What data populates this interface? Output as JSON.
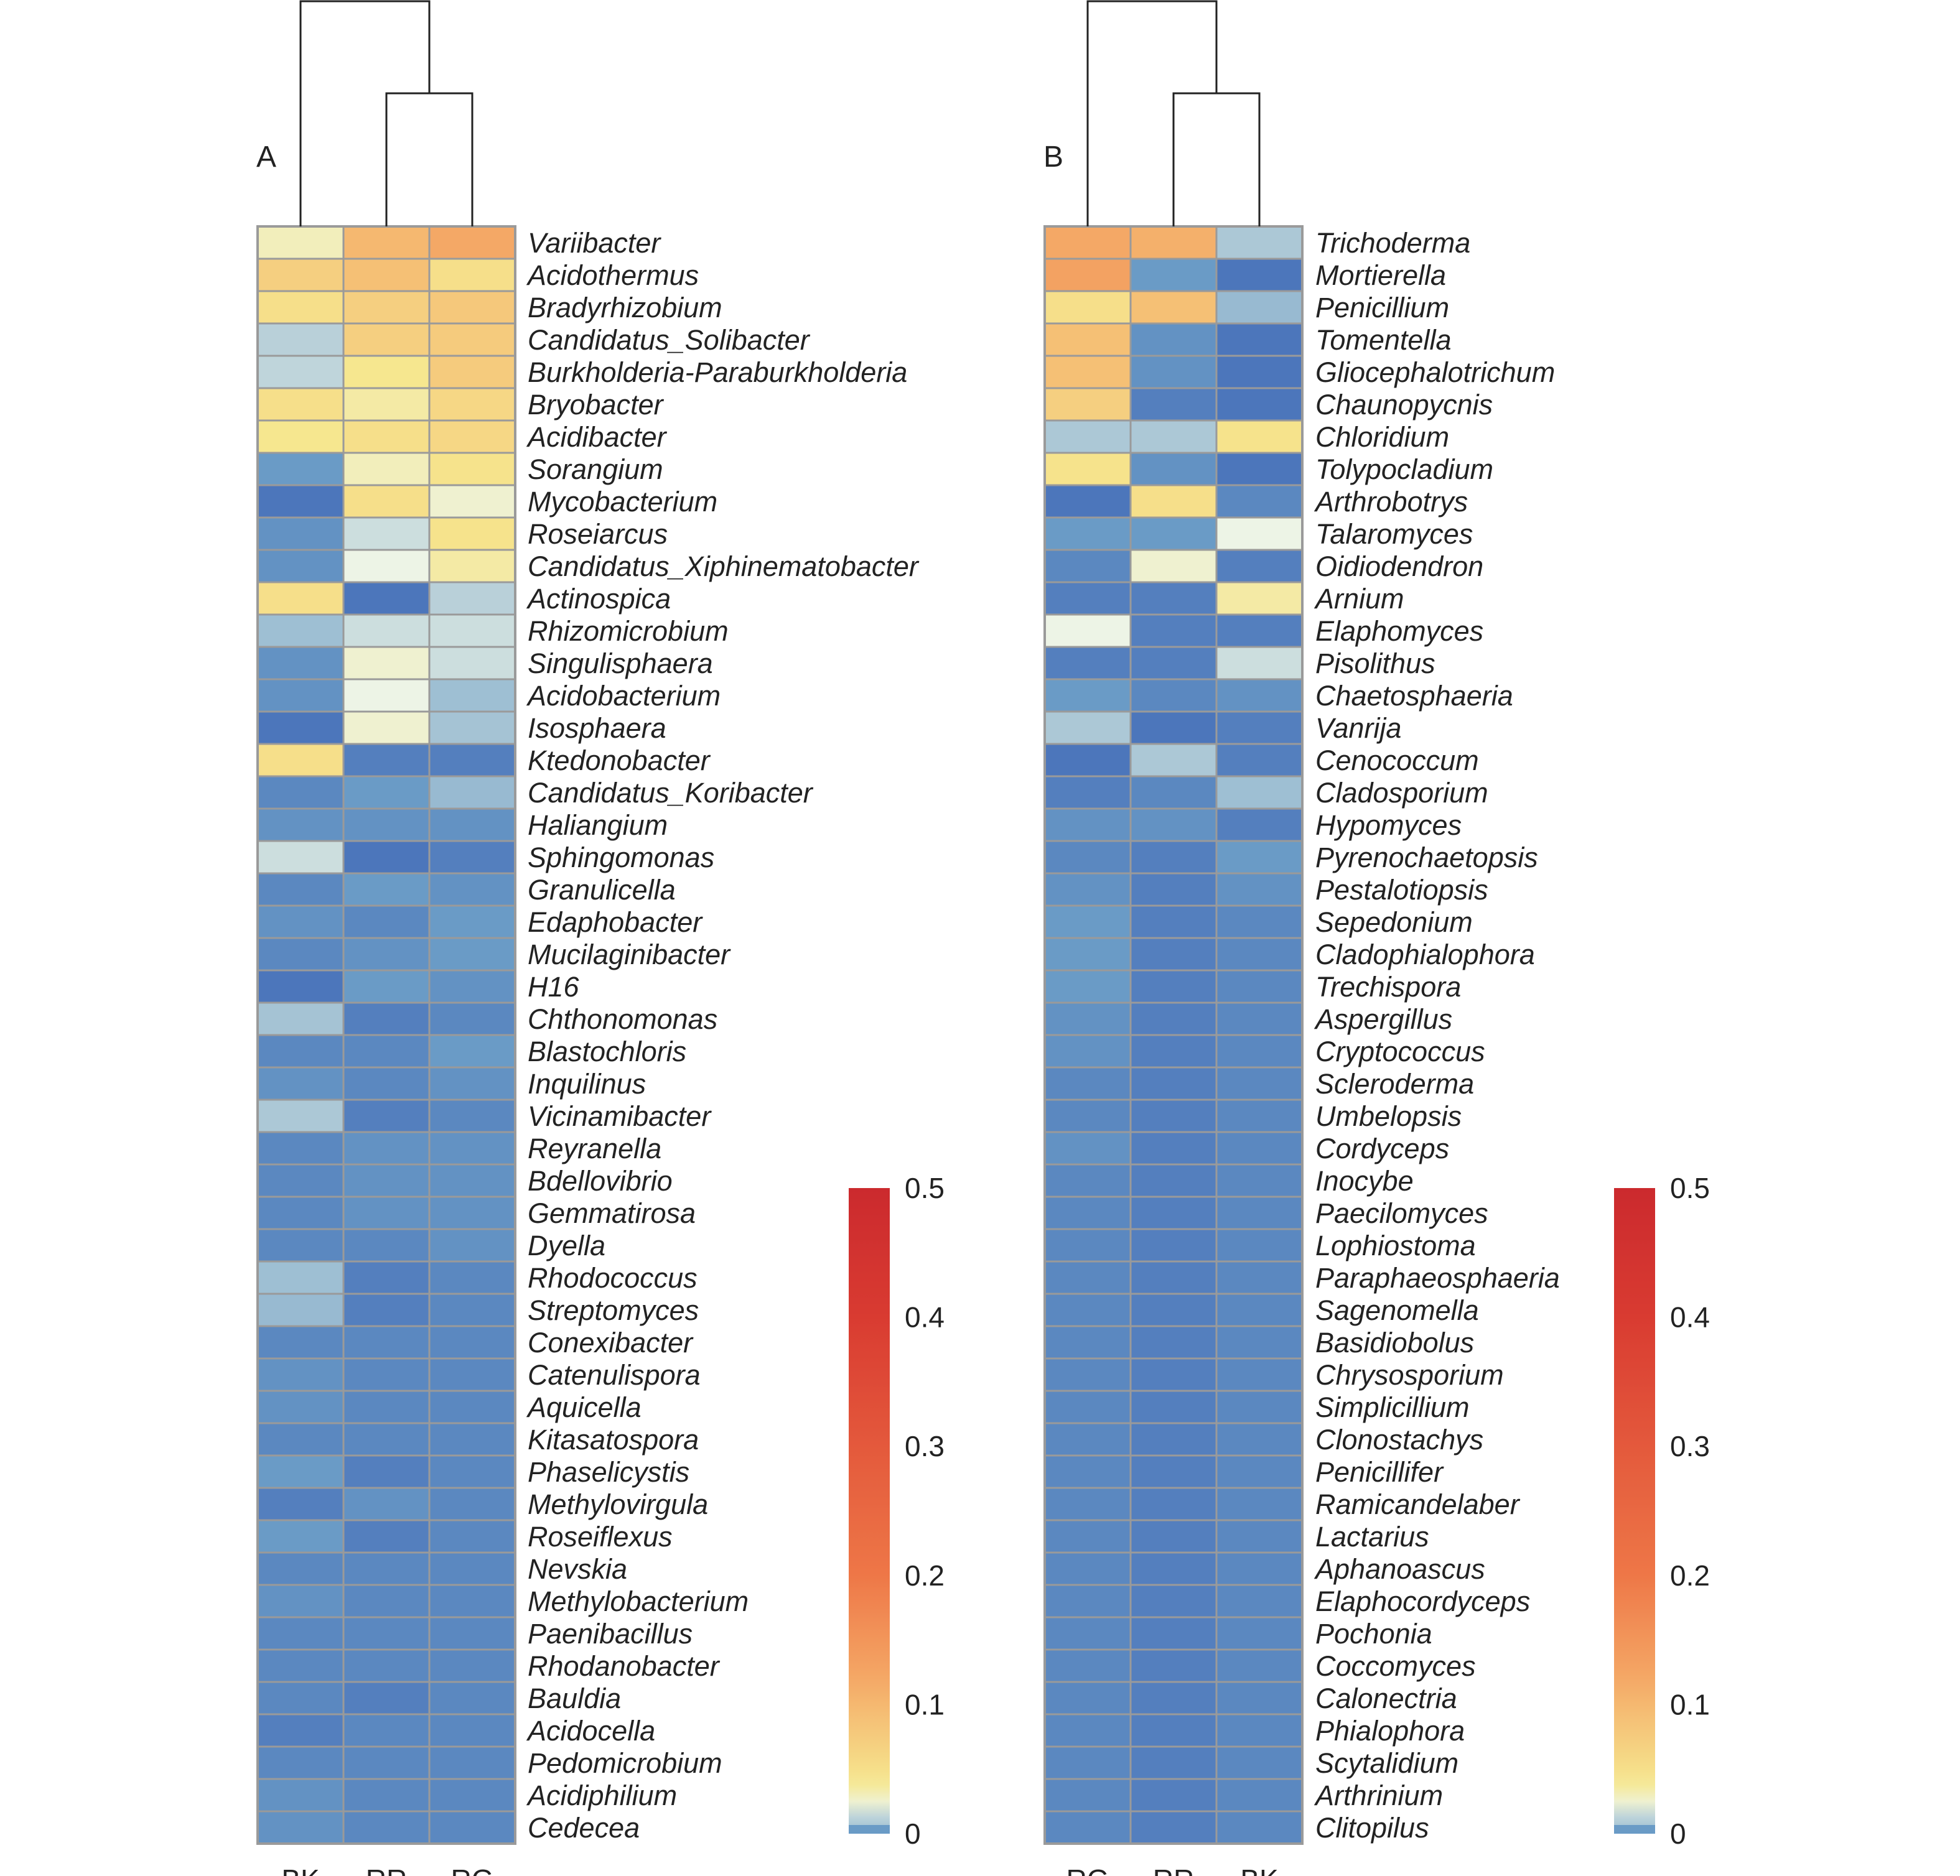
{
  "chart_data": [
    {
      "type": "heatmap",
      "panel_label": "A",
      "columns": [
        "BK",
        "RR",
        "RG"
      ],
      "rows": [
        "Variibacter",
        "Acidothermus",
        "Bradyrhizobium",
        "Candidatus_Solibacter",
        "Burkholderia-Paraburkholderia",
        "Bryobacter",
        "Acidibacter",
        "Sorangium",
        "Mycobacterium",
        "Roseiarcus",
        "Candidatus_Xiphinematobacter",
        "Actinospica",
        "Rhizomicrobium",
        "Singulisphaera",
        "Acidobacterium",
        "Isosphaera",
        "Ktedonobacter",
        "Candidatus_Koribacter",
        "Haliangium",
        "Sphingomonas",
        "Granulicella",
        "Edaphobacter",
        "Mucilaginibacter",
        "H16",
        "Chthonomonas",
        "Blastochloris",
        "Inquilinus",
        "Vicinamibacter",
        "Reyranella",
        "Bdellovibrio",
        "Gemmatirosa",
        "Dyella",
        "Rhodococcus",
        "Streptomyces",
        "Conexibacter",
        "Catenulispora",
        "Aquicella",
        "Kitasatospora",
        "Phaselicystis",
        "Methylovirgula",
        "Roseiflexus",
        "Nevskia",
        "Methylobacterium",
        "Paenibacillus",
        "Rhodanobacter",
        "Bauldia",
        "Acidocella",
        "Pedomicrobium",
        "Acidiphilium",
        "Cedecea"
      ],
      "values": [
        [
          0.03,
          0.1,
          0.12
        ],
        [
          0.07,
          0.09,
          0.05
        ],
        [
          0.05,
          0.07,
          0.08
        ],
        [
          0.012,
          0.07,
          0.075
        ],
        [
          0.013,
          0.04,
          0.075
        ],
        [
          0.05,
          0.035,
          0.06
        ],
        [
          0.04,
          0.05,
          0.06
        ],
        [
          0.006,
          0.03,
          0.045
        ],
        [
          0.002,
          0.05,
          0.025
        ],
        [
          0.005,
          0.015,
          0.045
        ],
        [
          0.005,
          0.02,
          0.035
        ],
        [
          0.05,
          0.002,
          0.012
        ],
        [
          0.008,
          0.015,
          0.015
        ],
        [
          0.005,
          0.025,
          0.015
        ],
        [
          0.005,
          0.02,
          0.008
        ],
        [
          0.002,
          0.025,
          0.009
        ],
        [
          0.05,
          0.003,
          0.003
        ],
        [
          0.004,
          0.006,
          0.007
        ],
        [
          0.005,
          0.005,
          0.005
        ],
        [
          0.015,
          0.002,
          0.003
        ],
        [
          0.004,
          0.006,
          0.005
        ],
        [
          0.005,
          0.004,
          0.006
        ],
        [
          0.004,
          0.005,
          0.006
        ],
        [
          0.002,
          0.006,
          0.005
        ],
        [
          0.009,
          0.003,
          0.004
        ],
        [
          0.004,
          0.004,
          0.006
        ],
        [
          0.005,
          0.004,
          0.005
        ],
        [
          0.01,
          0.003,
          0.004
        ],
        [
          0.004,
          0.005,
          0.005
        ],
        [
          0.004,
          0.005,
          0.005
        ],
        [
          0.004,
          0.005,
          0.005
        ],
        [
          0.004,
          0.004,
          0.005
        ],
        [
          0.008,
          0.003,
          0.004
        ],
        [
          0.007,
          0.003,
          0.004
        ],
        [
          0.004,
          0.004,
          0.004
        ],
        [
          0.005,
          0.004,
          0.004
        ],
        [
          0.005,
          0.004,
          0.004
        ],
        [
          0.004,
          0.004,
          0.004
        ],
        [
          0.006,
          0.003,
          0.004
        ],
        [
          0.003,
          0.005,
          0.004
        ],
        [
          0.006,
          0.003,
          0.004
        ],
        [
          0.004,
          0.004,
          0.004
        ],
        [
          0.005,
          0.004,
          0.004
        ],
        [
          0.004,
          0.004,
          0.004
        ],
        [
          0.004,
          0.004,
          0.004
        ],
        [
          0.004,
          0.003,
          0.004
        ],
        [
          0.003,
          0.004,
          0.004
        ],
        [
          0.004,
          0.004,
          0.004
        ],
        [
          0.005,
          0.004,
          0.004
        ],
        [
          0.005,
          0.004,
          0.004
        ]
      ],
      "color_scale": {
        "min": 0,
        "max": 0.5,
        "ticks": [
          "0",
          "0.1",
          "0.2",
          "0.3",
          "0.4",
          "0.5"
        ]
      },
      "column_dendrogram": "BK | (RR, RG)"
    },
    {
      "type": "heatmap",
      "panel_label": "B",
      "columns": [
        "RG",
        "RR",
        "BK"
      ],
      "rows": [
        "Trichoderma",
        "Mortierella",
        "Penicillium",
        "Tomentella",
        "Gliocephalotrichum",
        "Chaunopycnis",
        "Chloridium",
        "Tolypocladium",
        "Arthrobotrys",
        "Talaromyces",
        "Oidiodendron",
        "Arnium",
        "Elaphomyces",
        "Pisolithus",
        "Chaetosphaeria",
        "Vanrija",
        "Cenococcum",
        "Cladosporium",
        "Hypomyces",
        "Pyrenochaetopsis",
        "Pestalotiopsis",
        "Sepedonium",
        "Cladophialophora",
        "Trechispora",
        "Aspergillus",
        "Cryptococcus",
        "Scleroderma",
        "Umbelopsis",
        "Cordyceps",
        "Inocybe",
        "Paecilomyces",
        "Lophiostoma",
        "Paraphaeosphaeria",
        "Sagenomella",
        "Basidiobolus",
        "Chrysosporium",
        "Simplicillium",
        "Clonostachys",
        "Penicillifer",
        "Ramicandelaber",
        "Lactarius",
        "Aphanoascus",
        "Elaphocordyceps",
        "Pochonia",
        "Coccomyces",
        "Calonectria",
        "Phialophora",
        "Scytalidium",
        "Arthrinium",
        "Clitopilus"
      ],
      "values": [
        [
          0.12,
          0.11,
          0.01
        ],
        [
          0.13,
          0.006,
          0.002
        ],
        [
          0.05,
          0.09,
          0.007
        ],
        [
          0.09,
          0.005,
          0.002
        ],
        [
          0.09,
          0.005,
          0.002
        ],
        [
          0.07,
          0.003,
          0.002
        ],
        [
          0.01,
          0.01,
          0.045
        ],
        [
          0.045,
          0.005,
          0.002
        ],
        [
          0.002,
          0.05,
          0.004
        ],
        [
          0.006,
          0.006,
          0.02
        ],
        [
          0.004,
          0.025,
          0.003
        ],
        [
          0.003,
          0.003,
          0.035
        ],
        [
          0.02,
          0.003,
          0.003
        ],
        [
          0.003,
          0.003,
          0.015
        ],
        [
          0.006,
          0.004,
          0.005
        ],
        [
          0.01,
          0.002,
          0.003
        ],
        [
          0.002,
          0.01,
          0.003
        ],
        [
          0.003,
          0.004,
          0.008
        ],
        [
          0.005,
          0.005,
          0.003
        ],
        [
          0.004,
          0.003,
          0.006
        ],
        [
          0.005,
          0.003,
          0.005
        ],
        [
          0.006,
          0.003,
          0.004
        ],
        [
          0.006,
          0.003,
          0.004
        ],
        [
          0.006,
          0.003,
          0.004
        ],
        [
          0.005,
          0.003,
          0.004
        ],
        [
          0.005,
          0.003,
          0.004
        ],
        [
          0.004,
          0.003,
          0.004
        ],
        [
          0.004,
          0.003,
          0.004
        ],
        [
          0.005,
          0.003,
          0.004
        ],
        [
          0.004,
          0.003,
          0.004
        ],
        [
          0.004,
          0.003,
          0.004
        ],
        [
          0.004,
          0.003,
          0.004
        ],
        [
          0.004,
          0.003,
          0.004
        ],
        [
          0.004,
          0.003,
          0.004
        ],
        [
          0.004,
          0.003,
          0.004
        ],
        [
          0.004,
          0.003,
          0.004
        ],
        [
          0.004,
          0.003,
          0.004
        ],
        [
          0.004,
          0.003,
          0.004
        ],
        [
          0.004,
          0.003,
          0.004
        ],
        [
          0.004,
          0.003,
          0.004
        ],
        [
          0.004,
          0.003,
          0.004
        ],
        [
          0.004,
          0.003,
          0.004
        ],
        [
          0.004,
          0.003,
          0.004
        ],
        [
          0.004,
          0.003,
          0.004
        ],
        [
          0.004,
          0.003,
          0.004
        ],
        [
          0.004,
          0.003,
          0.004
        ],
        [
          0.004,
          0.003,
          0.004
        ],
        [
          0.004,
          0.003,
          0.004
        ],
        [
          0.004,
          0.003,
          0.004
        ],
        [
          0.004,
          0.003,
          0.004
        ]
      ],
      "color_scale": {
        "min": 0,
        "max": 0.5,
        "ticks": [
          "0",
          "0.1",
          "0.2",
          "0.3",
          "0.4",
          "0.5"
        ]
      },
      "column_dendrogram": "RG | (RR, BK)"
    }
  ],
  "palette": {
    "stops": [
      "#6a9bc6",
      "#edf4e6",
      "#f6e78f",
      "#f4a866",
      "#ee7747",
      "#d93b31",
      "#cb2a2e"
    ],
    "cell_border": "#9a9a9a",
    "line_color": "#222222"
  }
}
